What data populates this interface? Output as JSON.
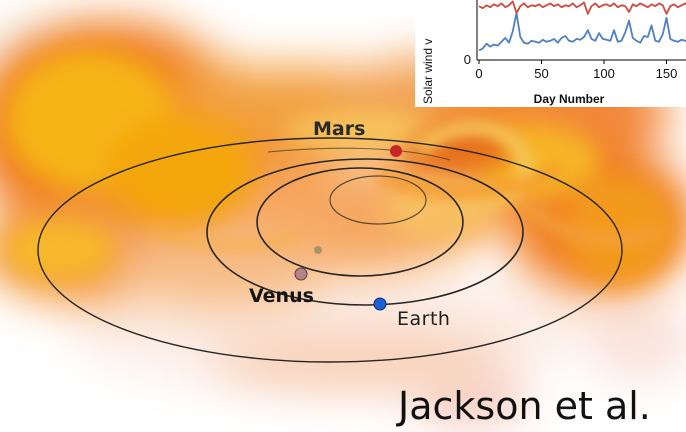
{
  "labels": {
    "mars": "Mars",
    "venus": "Venus",
    "earth": "Earth"
  },
  "credit": "Jackson et al.",
  "colors": {
    "mars": "#c8262a",
    "venus": "#b5848a",
    "earth": "#1b5fd1",
    "series_blue": "#4f7fc4",
    "series_red": "#d2493f"
  },
  "chart_data": {
    "type": "line",
    "ylabel": "Solar wind v",
    "xlabel": "Day Number",
    "xticks": [
      "0",
      "50",
      "100",
      "150"
    ],
    "yticks": [
      "0"
    ],
    "xlim": [
      0,
      170
    ],
    "series": [
      {
        "x": [
          0,
          3,
          6,
          9,
          12,
          15,
          18,
          21,
          24,
          27,
          30,
          33,
          36,
          39,
          42,
          45,
          48,
          51,
          54,
          57,
          60,
          63,
          66,
          69,
          72,
          75,
          78,
          81,
          84,
          87,
          90,
          93,
          96,
          99,
          102,
          105,
          108,
          111,
          114,
          117,
          120,
          123,
          126,
          129,
          132,
          135,
          138,
          141,
          144,
          147,
          150,
          153,
          156,
          159,
          162,
          165,
          168
        ],
        "y": [
          0.2,
          0.24,
          0.34,
          0.28,
          0.32,
          0.3,
          0.38,
          0.46,
          0.36,
          0.6,
          0.98,
          0.48,
          0.36,
          0.34,
          0.4,
          0.38,
          0.36,
          0.42,
          0.38,
          0.4,
          0.44,
          0.36,
          0.46,
          0.5,
          0.4,
          0.38,
          0.44,
          0.42,
          0.48,
          0.62,
          0.44,
          0.4,
          0.56,
          0.44,
          0.42,
          0.4,
          0.62,
          0.38,
          0.4,
          0.58,
          0.82,
          0.46,
          0.4,
          0.36,
          0.5,
          0.48,
          0.72,
          0.4,
          0.38,
          0.54,
          0.88,
          0.44,
          0.4,
          0.38,
          0.42,
          0.4,
          0.38
        ]
      },
      {
        "x": [
          0,
          3,
          6,
          9,
          12,
          15,
          18,
          21,
          24,
          27,
          30,
          33,
          36,
          39,
          42,
          45,
          48,
          51,
          54,
          57,
          60,
          63,
          66,
          69,
          72,
          75,
          78,
          81,
          84,
          87,
          90,
          93,
          96,
          99,
          102,
          105,
          108,
          111,
          114,
          117,
          120,
          123,
          126,
          129,
          132,
          135,
          138,
          141,
          144,
          147,
          150,
          153,
          156,
          159,
          162,
          165,
          168
        ],
        "y": [
          1.12,
          1.08,
          1.14,
          1.1,
          1.16,
          1.12,
          1.18,
          1.1,
          1.14,
          1.22,
          0.98,
          1.12,
          1.18,
          1.1,
          1.14,
          1.12,
          1.16,
          1.1,
          1.14,
          1.18,
          1.12,
          1.16,
          1.1,
          1.14,
          1.12,
          1.18,
          1.1,
          1.14,
          1.2,
          0.96,
          1.12,
          1.18,
          1.1,
          1.14,
          1.16,
          1.12,
          1.18,
          1.1,
          1.14,
          1.12,
          1.0,
          1.16,
          1.12,
          1.18,
          1.14,
          1.1,
          1.16,
          1.12,
          1.18,
          1.14,
          0.96,
          1.12,
          1.16,
          1.1,
          1.14,
          1.18,
          1.12
        ]
      }
    ]
  }
}
